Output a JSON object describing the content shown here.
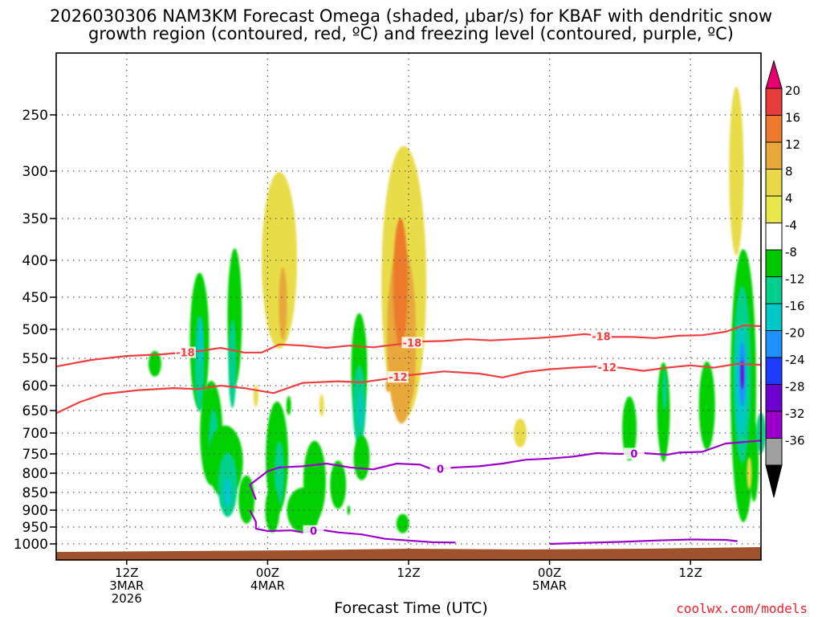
{
  "title": {
    "line1": "2026030306 NAM3KM Forecast Omega (shaded, μbar/s) for KBAF with dendritic snow",
    "line2": "growth region (contoured, red, ºC) and freezing level (contoured, purple, ºC)"
  },
  "credit": "coolwx.com/models",
  "chart_data": {
    "type": "heatmap",
    "xlabel": "Forecast Time (UTC)",
    "ylabel": "",
    "x_unit": "hours since 2026-03-03 06Z",
    "xlim": [
      0,
      60
    ],
    "x_ticks": [
      {
        "hour": 6,
        "lines": [
          "12Z",
          "3MAR",
          "2026"
        ]
      },
      {
        "hour": 18,
        "lines": [
          "00Z",
          "4MAR"
        ]
      },
      {
        "hour": 30,
        "lines": [
          "12Z"
        ]
      },
      {
        "hour": 42,
        "lines": [
          "00Z",
          "5MAR"
        ]
      },
      {
        "hour": 54,
        "lines": [
          "12Z"
        ]
      }
    ],
    "y_ticks": [
      250,
      300,
      350,
      400,
      450,
      500,
      550,
      600,
      650,
      700,
      750,
      800,
      850,
      900,
      950,
      1000
    ],
    "ylim_hpa": [
      200,
      1013
    ],
    "y_scale": "pressure (hPa)",
    "grid": true,
    "colorbar": {
      "labels": [
        "20",
        "16",
        "12",
        "8",
        "4",
        "-4",
        "-8",
        "-12",
        "-16",
        "-20",
        "-24",
        "-28",
        "-32",
        "-36"
      ],
      "colors": [
        "#e8006e",
        "#e83c3c",
        "#ec7a2a",
        "#e8a83a",
        "#e8d84a",
        "#e8e84c",
        "#ffffff",
        "#00c800",
        "#00d08c",
        "#00c8c8",
        "#1e90ff",
        "#1e3cff",
        "#6e00d2",
        "#9b00c8",
        "#a0a0a0",
        "#000000"
      ]
    },
    "omega_regions": [
      {
        "name": "upward motion, -4 to -8 μbar/s",
        "color": "#00d000"
      },
      {
        "name": "upward motion, -8 to -12 μbar/s",
        "color": "#00d08c"
      },
      {
        "name": "upward motion, -12 to -16 μbar/s",
        "color": "#00c8c8"
      },
      {
        "name": "upward motion, -16 to -20 μbar/s",
        "color": "#1e90ff"
      },
      {
        "name": "upward motion, -24 to -28 μbar/s",
        "color": "#7a00c8"
      },
      {
        "name": "downward motion, 4 to 8 μbar/s",
        "color": "#e8dc4a"
      },
      {
        "name": "downward motion, 8 to 12 μbar/s",
        "color": "#e8a83a"
      },
      {
        "name": "downward motion, 12 to 16 μbar/s",
        "color": "#ec7a2a"
      }
    ],
    "contours": [
      {
        "name": "-18",
        "color": "#ee4040",
        "label_text": "-18",
        "points": [
          [
            0,
            565
          ],
          [
            3,
            553
          ],
          [
            6,
            546
          ],
          [
            9,
            543
          ],
          [
            12,
            538
          ],
          [
            14,
            532
          ],
          [
            16,
            540
          ],
          [
            17.5,
            540
          ],
          [
            19,
            526
          ],
          [
            21,
            528
          ],
          [
            23,
            532
          ],
          [
            25,
            528
          ],
          [
            27,
            531
          ],
          [
            29,
            526
          ],
          [
            31,
            521
          ],
          [
            33,
            520
          ],
          [
            35,
            517
          ],
          [
            37,
            519
          ],
          [
            39,
            517
          ],
          [
            41,
            515
          ],
          [
            43,
            512
          ],
          [
            45,
            508
          ],
          [
            47,
            513
          ],
          [
            49,
            513
          ],
          [
            51,
            515
          ],
          [
            53,
            511
          ],
          [
            55,
            510
          ],
          [
            57,
            504
          ],
          [
            58.5,
            494
          ],
          [
            60,
            495
          ]
        ]
      },
      {
        "name": "-12",
        "color": "#ee4040",
        "label_text": "-12",
        "points": [
          [
            0,
            656
          ],
          [
            2,
            633
          ],
          [
            4,
            617
          ],
          [
            7,
            609
          ],
          [
            10,
            605
          ],
          [
            12,
            607
          ],
          [
            14,
            600
          ],
          [
            16,
            605
          ],
          [
            18.5,
            615
          ],
          [
            21,
            595
          ],
          [
            24,
            592
          ],
          [
            26,
            594
          ],
          [
            28,
            588
          ],
          [
            30,
            581
          ],
          [
            33,
            574
          ],
          [
            36,
            578
          ],
          [
            38,
            585
          ],
          [
            40,
            575
          ],
          [
            42,
            570
          ],
          [
            44,
            567
          ],
          [
            46,
            565
          ],
          [
            48,
            567
          ],
          [
            50,
            573
          ],
          [
            52,
            567
          ],
          [
            54,
            563
          ],
          [
            56,
            567
          ],
          [
            58,
            560
          ],
          [
            60,
            562
          ]
        ]
      },
      {
        "name": "0",
        "color": "#9b00c8",
        "label_text": "0",
        "points": [
          [
            17,
            870
          ],
          [
            16.5,
            830
          ],
          [
            18,
            795
          ],
          [
            19,
            785
          ],
          [
            21,
            782
          ],
          [
            23,
            775
          ],
          [
            25,
            785
          ],
          [
            27,
            790
          ],
          [
            29,
            775
          ],
          [
            31,
            778
          ],
          [
            32,
            790
          ],
          [
            34,
            785
          ],
          [
            36,
            782
          ],
          [
            38,
            775
          ],
          [
            39,
            770
          ],
          [
            40,
            765
          ],
          [
            42,
            762
          ],
          [
            44,
            757
          ],
          [
            46,
            748
          ],
          [
            48,
            750
          ],
          [
            50,
            748
          ],
          [
            52,
            752
          ],
          [
            53,
            747
          ],
          [
            55,
            745
          ],
          [
            57,
            725
          ],
          [
            58.5,
            722
          ],
          [
            60,
            718
          ]
        ]
      },
      {
        "name": "0",
        "color": "#9b00c8",
        "label_text": "",
        "points": [
          [
            16.5,
            900
          ],
          [
            17,
            935
          ],
          [
            17,
            955
          ],
          [
            18,
            962
          ],
          [
            20,
            960
          ],
          [
            21,
            966
          ],
          [
            22.5,
            958
          ],
          [
            24,
            966
          ],
          [
            26,
            972
          ],
          [
            28,
            985
          ],
          [
            30,
            990
          ],
          [
            32,
            995
          ],
          [
            34,
            996
          ]
        ]
      },
      {
        "name": "0",
        "color": "#9b00c8",
        "label_text": "",
        "points": [
          [
            42,
            1000
          ],
          [
            45,
            997
          ],
          [
            48,
            994
          ],
          [
            51,
            990
          ],
          [
            54,
            987
          ],
          [
            57,
            988
          ],
          [
            58,
            992
          ]
        ]
      }
    ]
  }
}
